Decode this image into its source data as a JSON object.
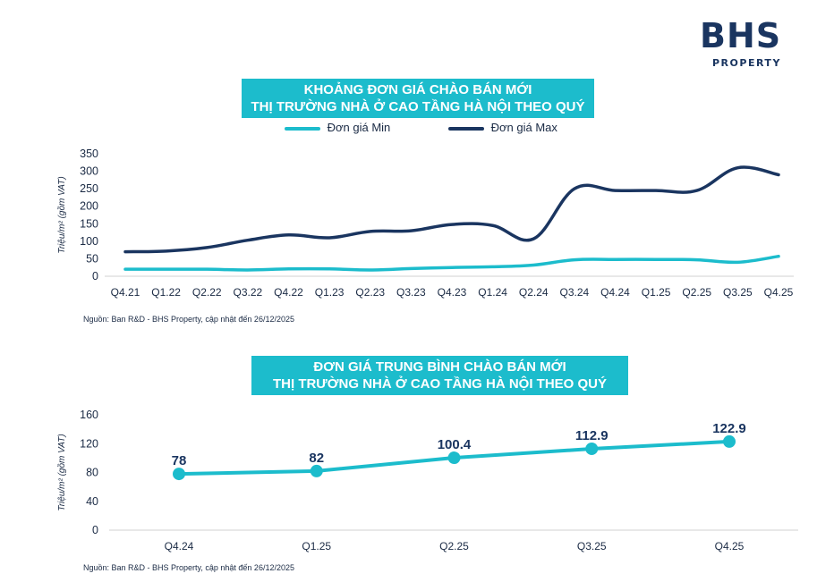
{
  "logo": {
    "main": "BHS",
    "sub": "PROPERTY"
  },
  "chart1_title": [
    "KHOẢNG ĐƠN GIÁ CHÀO BÁN MỚI",
    "THỊ TRƯỜNG NHÀ Ở CAO TẦNG HÀ NỘI THEO QUÝ"
  ],
  "chart2_title": [
    "ĐƠN GIÁ TRUNG BÌNH CHÀO BÁN MỚI",
    "THỊ TRƯỜNG NHÀ Ở CAO TẦNG HÀ NỘI THEO QUÝ"
  ],
  "source1": "Nguồn: Ban R&D - BHS Property, cập nhật đến 26/12/2025",
  "source2": "Nguồn: Ban R&D - BHS Property, cập nhật đến 26/12/2025",
  "colors": {
    "min": "#1cbccc",
    "max": "#1a3560",
    "avg": "#1cbccc",
    "label": "#1a3560"
  },
  "chart_data": [
    {
      "type": "line",
      "categories": [
        "Q4.21",
        "Q1.22",
        "Q2.22",
        "Q3.22",
        "Q4.22",
        "Q1.23",
        "Q2.23",
        "Q3.23",
        "Q4.23",
        "Q1.24",
        "Q2.24",
        "Q3.24",
        "Q4.24",
        "Q1.25",
        "Q2.25",
        "Q3.25",
        "Q4.25"
      ],
      "series": [
        {
          "name": "Đơn giá Min",
          "values": [
            20,
            20,
            20,
            18,
            21,
            21,
            18,
            22,
            25,
            27,
            32,
            47,
            48,
            48,
            47,
            40,
            57
          ]
        },
        {
          "name": "Đơn giá Max",
          "values": [
            70,
            72,
            82,
            103,
            118,
            110,
            128,
            130,
            148,
            145,
            107,
            250,
            245,
            245,
            245,
            310,
            290
          ]
        }
      ],
      "ylabel": "Triệu/m² (gồm VAT)",
      "yticks": [
        0,
        50,
        100,
        150,
        200,
        250,
        300,
        350
      ],
      "ylim": [
        0,
        350
      ],
      "legend": "top-center"
    },
    {
      "type": "line",
      "categories": [
        "Q4.24",
        "Q1.25",
        "Q2.25",
        "Q3.25",
        "Q4.25"
      ],
      "series": [
        {
          "values": [
            78,
            82,
            100.4,
            112.9,
            122.9
          ],
          "labels": [
            "78",
            "82",
            "100.4",
            "112.9",
            "122.9"
          ]
        }
      ],
      "ylabel": "Triệu/m² (gồm VAT)",
      "yticks": [
        0,
        40,
        80,
        120,
        160
      ],
      "ylim": [
        0,
        160
      ]
    }
  ]
}
